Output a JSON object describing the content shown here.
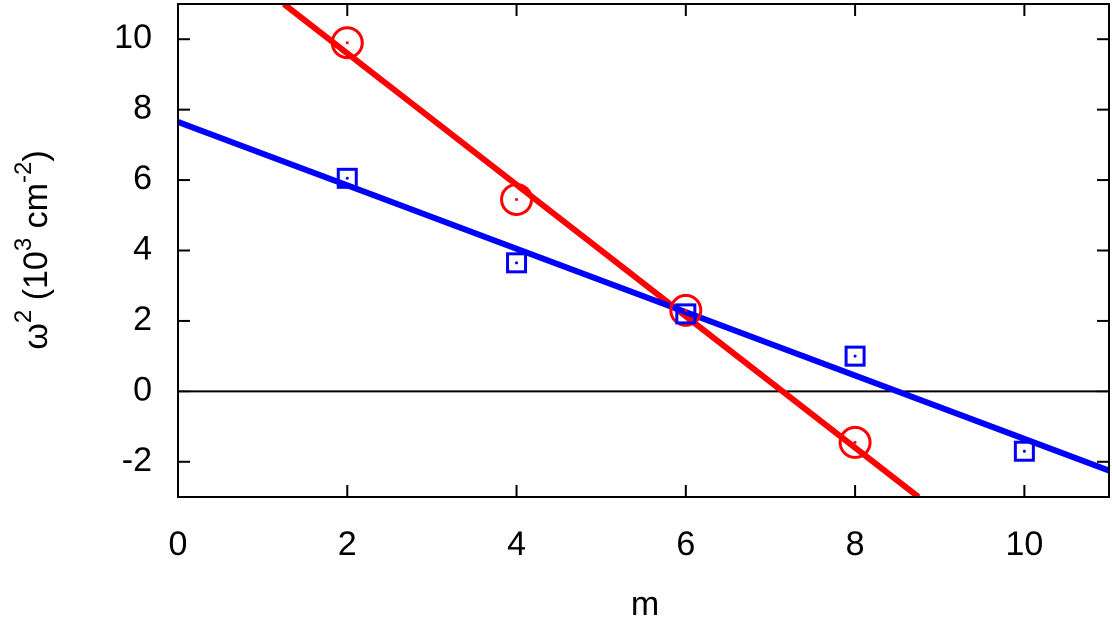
{
  "chart_data": {
    "type": "scatter",
    "x_label": "m",
    "y_label_parts": [
      {
        "text": "ω"
      },
      {
        "text": "2",
        "sup": true
      },
      {
        "text": " (10"
      },
      {
        "text": "3",
        "sup": true
      },
      {
        "text": " cm"
      },
      {
        "text": "-2",
        "sup": true
      },
      {
        "text": ")"
      }
    ],
    "xlim": [
      0,
      11
    ],
    "ylim": [
      -3,
      11
    ],
    "xticks": [
      0,
      2,
      4,
      6,
      8,
      10
    ],
    "yticks": [
      -2,
      0,
      2,
      4,
      6,
      8,
      10
    ],
    "zero_line": true,
    "series": [
      {
        "marker": "circle",
        "color": "#ff0000",
        "x": [
          2,
          4,
          6,
          8
        ],
        "values": [
          9.9,
          5.45,
          2.3,
          -1.45
        ]
      },
      {
        "marker": "square",
        "color": "#0000ff",
        "x": [
          2,
          4,
          6,
          8,
          10
        ],
        "values": [
          6.05,
          3.65,
          2.2,
          1.0,
          -1.7
        ]
      }
    ],
    "fits": [
      {
        "color": "#ff0000",
        "x": [
          1.25,
          8.75
        ],
        "values": [
          11,
          -3
        ]
      },
      {
        "color": "#0000ff",
        "x": [
          0,
          11
        ],
        "values": [
          7.65,
          -2.25
        ]
      }
    ]
  }
}
